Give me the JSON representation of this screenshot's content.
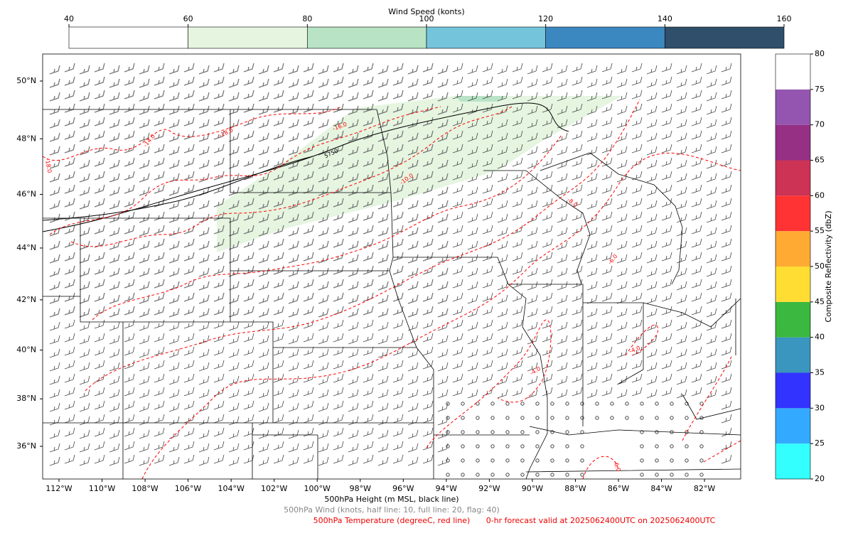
{
  "wind_colorbar": {
    "title": "Wind Speed (konts)",
    "ticks": [
      40,
      60,
      80,
      100,
      120,
      140,
      160
    ],
    "colors": [
      "#ffffff",
      "#e5f5e0",
      "#b8e3c4",
      "#74c4dc",
      "#3b87c0",
      "#2f4f6a"
    ]
  },
  "reflectivity_colorbar": {
    "title": "Composite Reflectivity (dbZ)",
    "ticks": [
      20,
      25,
      30,
      35,
      40,
      45,
      50,
      55,
      60,
      65,
      70,
      75,
      80
    ],
    "colors": [
      "#33ffff",
      "#33aaff",
      "#3333ff",
      "#3a96bf",
      "#3ab83f",
      "#ffdd33",
      "#ffaa33",
      "#ff3333",
      "#cc3355",
      "#953085",
      "#9455b0",
      "#ffffff"
    ]
  },
  "map": {
    "lat_ticks": [
      {
        "value": 36,
        "label": "36°N"
      },
      {
        "value": 38,
        "label": "38°N"
      },
      {
        "value": 40,
        "label": "40°N"
      },
      {
        "value": 42,
        "label": "42°N"
      },
      {
        "value": 44,
        "label": "44°N"
      },
      {
        "value": 46,
        "label": "46°N"
      },
      {
        "value": 48,
        "label": "48°N"
      },
      {
        "value": 50,
        "label": "50°N"
      }
    ],
    "lon_ticks": [
      {
        "value": -112,
        "label": "112°W"
      },
      {
        "value": -110,
        "label": "110°W"
      },
      {
        "value": -108,
        "label": "108°W"
      },
      {
        "value": -106,
        "label": "106°W"
      },
      {
        "value": -104,
        "label": "104°W"
      },
      {
        "value": -102,
        "label": "102°W"
      },
      {
        "value": -100,
        "label": "100°W"
      },
      {
        "value": -98,
        "label": "98°W"
      },
      {
        "value": -96,
        "label": "96°W"
      },
      {
        "value": -94,
        "label": "94°W"
      },
      {
        "value": -92,
        "label": "92°W"
      },
      {
        "value": -90,
        "label": "90°W"
      },
      {
        "value": -88,
        "label": "88°W"
      },
      {
        "value": -86,
        "label": "86°W"
      },
      {
        "value": -84,
        "label": "84°W"
      },
      {
        "value": -82,
        "label": "82°W"
      }
    ],
    "contour_labels": [
      "-18.0",
      "-18.0",
      "-16.0",
      "-14.0",
      "-10.0",
      "-8.0",
      "-6.0",
      "-4.0",
      "-4.0",
      "-6.0",
      "5750"
    ]
  },
  "captions": {
    "height": "500hPa Height (m MSL, black line)",
    "wind": "500hPa Wind (knots, half line: 10, full line: 20, flag: 40)",
    "temperature": "500hPa Temperature (degreeC, red line)",
    "valid_time": "0-hr forecast valid at 2025062400UTC on 2025062400UTC"
  }
}
